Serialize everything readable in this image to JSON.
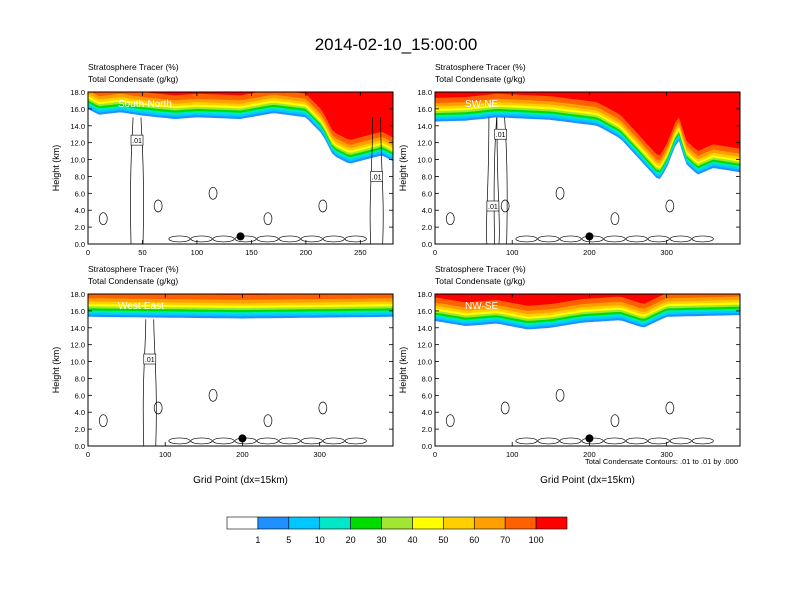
{
  "title": "2014-02-10_15:00:00",
  "colors": {
    "levels": [
      "#ffffff",
      "#1e90ff",
      "#00c8ff",
      "#00e8c8",
      "#00dc00",
      "#a0e632",
      "#ffff00",
      "#ffd000",
      "#ffa000",
      "#ff6000",
      "#ff0000"
    ]
  },
  "colorbar": {
    "labels": [
      "1",
      "5",
      "10",
      "20",
      "30",
      "40",
      "50",
      "60",
      "70",
      "100"
    ]
  },
  "footnote": "Total Condensate Contours: .01 to .01 by .000",
  "chart_data": [
    {
      "type": "heatmap",
      "panel_label": "South-North",
      "title_line1": "Stratosphere Tracer   (%)",
      "title_line2": "Total Condensate   (g/kg)",
      "ylabel": "Height (km)",
      "xlabel": "",
      "xlim": [
        0,
        280
      ],
      "ylim": [
        0,
        18
      ],
      "xticks": [
        0,
        50,
        100,
        150,
        200,
        250
      ],
      "yticks": [
        "0.0",
        "2.0",
        "4.0",
        "6.0",
        "8.0",
        "10.0",
        "12.0",
        "14.0",
        "16.0",
        "18.0"
      ],
      "marker_x": 140,
      "contour_labels": [
        {
          "x": 45,
          "y": 12.3,
          "text": ".01"
        },
        {
          "x": 265,
          "y": 8.0,
          "text": ".01"
        }
      ],
      "tracer_base": [
        [
          0,
          16.0
        ],
        [
          10,
          15.3
        ],
        [
          30,
          15.6
        ],
        [
          50,
          15.2
        ],
        [
          80,
          14.8
        ],
        [
          100,
          15.0
        ],
        [
          140,
          14.8
        ],
        [
          170,
          15.5
        ],
        [
          200,
          15.0
        ],
        [
          215,
          13.0
        ],
        [
          225,
          10.5
        ],
        [
          240,
          9.5
        ],
        [
          255,
          10.0
        ],
        [
          270,
          10.5
        ],
        [
          280,
          9.8
        ]
      ]
    },
    {
      "type": "heatmap",
      "panel_label": "SW-NE",
      "title_line1": "Stratosphere Tracer   (%)",
      "title_line2": "Total Condensate   (g/kg)",
      "ylabel": "Height (km)",
      "xlabel": "",
      "xlim": [
        0,
        395
      ],
      "ylim": [
        0,
        18
      ],
      "xticks": [
        0,
        100,
        200,
        300
      ],
      "yticks": [
        "0.0",
        "2.0",
        "4.0",
        "6.0",
        "8.0",
        "10.0",
        "12.0",
        "14.0",
        "16.0",
        "18.0"
      ],
      "marker_x": 200,
      "contour_labels": [
        {
          "x": 85,
          "y": 13.0,
          "text": ".01"
        },
        {
          "x": 75,
          "y": 4.5,
          "text": ".01"
        }
      ],
      "tracer_base": [
        [
          0,
          14.5
        ],
        [
          40,
          14.6
        ],
        [
          80,
          15.0
        ],
        [
          150,
          14.7
        ],
        [
          210,
          14.0
        ],
        [
          240,
          12.5
        ],
        [
          270,
          9.5
        ],
        [
          290,
          7.5
        ],
        [
          300,
          9.0
        ],
        [
          315,
          12.5
        ],
        [
          325,
          9.5
        ],
        [
          340,
          8.2
        ],
        [
          360,
          9.0
        ],
        [
          395,
          8.5
        ]
      ]
    },
    {
      "type": "heatmap",
      "panel_label": "West-East",
      "title_line1": "Stratosphere Tracer   (%)",
      "title_line2": "Total Condensate   (g/kg)",
      "ylabel": "Height (km)",
      "xlabel": "Grid Point (dx=15km)",
      "xlim": [
        0,
        395
      ],
      "ylim": [
        0,
        18
      ],
      "xticks": [
        0,
        100,
        200,
        300
      ],
      "yticks": [
        "0.0",
        "2.0",
        "4.0",
        "6.0",
        "8.0",
        "10.0",
        "12.0",
        "14.0",
        "16.0",
        "18.0"
      ],
      "marker_x": 200,
      "contour_labels": [
        {
          "x": 80,
          "y": 10.3,
          "text": ".01"
        }
      ],
      "tracer_base": [
        [
          0,
          15.3
        ],
        [
          100,
          15.2
        ],
        [
          200,
          15.1
        ],
        [
          300,
          15.2
        ],
        [
          395,
          15.3
        ]
      ]
    },
    {
      "type": "heatmap",
      "panel_label": "NW-SE",
      "title_line1": "Stratosphere Tracer   (%)",
      "title_line2": "Total Condensate   (g/kg)",
      "ylabel": "Height (km)",
      "xlabel": "Grid Point (dx=15km)",
      "xlim": [
        0,
        395
      ],
      "ylim": [
        0,
        18
      ],
      "xticks": [
        0,
        100,
        200,
        300
      ],
      "yticks": [
        "0.0",
        "2.0",
        "4.0",
        "6.0",
        "8.0",
        "10.0",
        "12.0",
        "14.0",
        "16.0",
        "18.0"
      ],
      "marker_x": 200,
      "contour_labels": [],
      "tracer_base": [
        [
          0,
          14.8
        ],
        [
          40,
          14.2
        ],
        [
          80,
          14.5
        ],
        [
          120,
          13.8
        ],
        [
          150,
          14.0
        ],
        [
          190,
          14.6
        ],
        [
          240,
          14.9
        ],
        [
          270,
          14.0
        ],
        [
          300,
          15.3
        ],
        [
          395,
          15.5
        ]
      ]
    }
  ]
}
